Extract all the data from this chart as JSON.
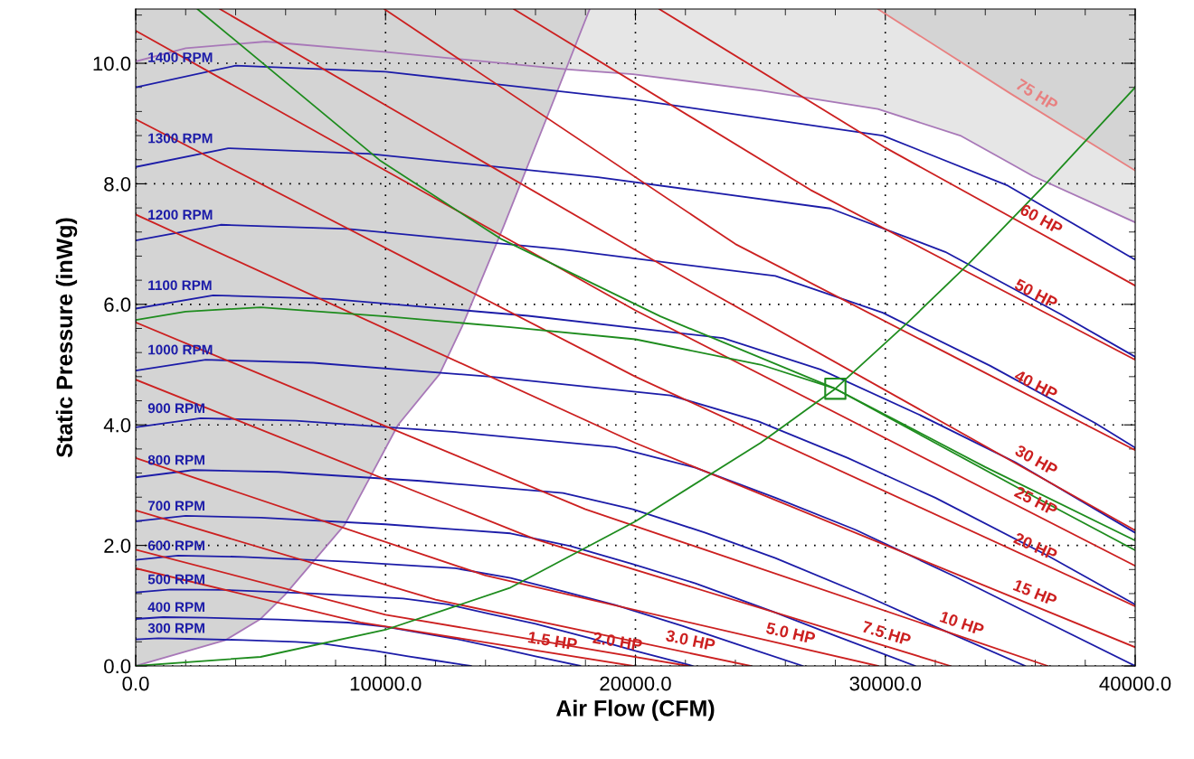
{
  "chart_data": {
    "type": "line",
    "xlabel": "Air Flow (CFM)",
    "ylabel": "Static Pressure (inWg)",
    "xlim": [
      0,
      40000
    ],
    "ylim": [
      0,
      10.9
    ],
    "xticks": [
      {
        "value": 0,
        "label": "0.0"
      },
      {
        "value": 2000,
        "label": null
      },
      {
        "value": 4000,
        "label": null
      },
      {
        "value": 6000,
        "label": null
      },
      {
        "value": 8000,
        "label": null
      },
      {
        "value": 10000,
        "label": "10000.0"
      },
      {
        "value": 12000,
        "label": null
      },
      {
        "value": 14000,
        "label": null
      },
      {
        "value": 16000,
        "label": null
      },
      {
        "value": 18000,
        "label": null
      },
      {
        "value": 20000,
        "label": "20000.0"
      },
      {
        "value": 22000,
        "label": null
      },
      {
        "value": 24000,
        "label": null
      },
      {
        "value": 26000,
        "label": null
      },
      {
        "value": 28000,
        "label": null
      },
      {
        "value": 30000,
        "label": "30000.0"
      },
      {
        "value": 32000,
        "label": null
      },
      {
        "value": 34000,
        "label": null
      },
      {
        "value": 36000,
        "label": null
      },
      {
        "value": 38000,
        "label": null
      },
      {
        "value": 40000,
        "label": "40000.0"
      }
    ],
    "yticks": [
      {
        "value": 0,
        "label": "0.0"
      },
      {
        "value": 0.4,
        "label": null
      },
      {
        "value": 0.8,
        "label": null
      },
      {
        "value": 1.2,
        "label": null
      },
      {
        "value": 1.6,
        "label": null
      },
      {
        "value": 2,
        "label": "2.0"
      },
      {
        "value": 2.4,
        "label": null
      },
      {
        "value": 2.8,
        "label": null
      },
      {
        "value": 3.2,
        "label": null
      },
      {
        "value": 3.6,
        "label": null
      },
      {
        "value": 4,
        "label": "4.0"
      },
      {
        "value": 4.4,
        "label": null
      },
      {
        "value": 4.8,
        "label": null
      },
      {
        "value": 5.2,
        "label": null
      },
      {
        "value": 5.6,
        "label": null
      },
      {
        "value": 6,
        "label": "6.0"
      },
      {
        "value": 6.4,
        "label": null
      },
      {
        "value": 6.8,
        "label": null
      },
      {
        "value": 7.2,
        "label": null
      },
      {
        "value": 7.6,
        "label": null
      },
      {
        "value": 8,
        "label": "8.0"
      },
      {
        "value": 8.4,
        "label": null
      },
      {
        "value": 8.8,
        "label": null
      },
      {
        "value": 9.2,
        "label": null
      },
      {
        "value": 9.6,
        "label": null
      },
      {
        "value": 10,
        "label": "10.0"
      },
      {
        "value": 10.4,
        "label": null
      },
      {
        "value": 10.8,
        "label": null
      }
    ],
    "grid": true,
    "annotations": [
      {
        "text": "75 HP",
        "x": 35800,
        "y": 9.3
      },
      {
        "text": "60 HP",
        "x": 36000,
        "y": 7.23
      },
      {
        "text": "50 HP",
        "x": 35800,
        "y": 5.99
      },
      {
        "text": "40 HP",
        "x": 35800,
        "y": 4.48
      },
      {
        "text": "30 HP",
        "x": 35800,
        "y": 3.23
      },
      {
        "text": "25 HP",
        "x": 35800,
        "y": 2.55
      },
      {
        "text": "20 HP",
        "x": 35800,
        "y": 1.79
      },
      {
        "text": "15 HP",
        "x": 35800,
        "y": 1.02
      },
      {
        "text": "10 HP",
        "x": 32900,
        "y": 0.51
      },
      {
        "text": "7.5 HP",
        "x": 29900,
        "y": 0.34
      },
      {
        "text": "5.0 HP",
        "x": 26100,
        "y": 0.34
      },
      {
        "text": "3.0 HP",
        "x": 22100,
        "y": 0.22
      },
      {
        "text": "2.0 HP",
        "x": 19200,
        "y": 0.2
      },
      {
        "text": "1.5 HP",
        "x": 16600,
        "y": 0.21
      }
    ],
    "series": [
      {
        "color": "#a878b8",
        "x": [
          0,
          2000,
          5200,
          9950,
          17200,
          18170,
          19900,
          25000,
          29700,
          33000,
          35000,
          35900,
          40000
        ],
        "values": [
          10.03,
          10.25,
          10.36,
          10.19,
          9.9,
          9.87,
          9.82,
          9.55,
          9.24,
          8.8,
          8.34,
          8.13,
          7.36
        ],
        "lower": [
          10.03,
          10.25,
          10.36,
          10.19,
          9.9,
          9.87,
          9.82,
          9.55,
          9.24,
          8.8,
          8.34,
          8.13,
          7.36
        ],
        "upper": [
          10.03,
          10.25,
          10.36,
          10.19,
          9.9,
          10.9,
          10.9,
          10.9,
          10.9,
          10.03,
          9.5,
          9.27,
          8.22
        ]
      },
      {
        "color": "#e88080",
        "x": [
          29700,
          35000,
          40000
        ],
        "values": [
          10.9,
          9.5,
          8.22
        ],
        "lower": [
          10.9,
          9.5,
          8.22
        ],
        "upper": [
          10.9,
          10.9,
          10.9
        ]
      },
      {
        "color": "#a878b8",
        "x": [
          0,
          3600,
          5000,
          5970,
          8360,
          10500,
          12160,
          13070,
          14730,
          16790,
          18170
        ],
        "values": [
          0,
          0.43,
          0.78,
          1.18,
          2.34,
          4.0,
          4.84,
          5.64,
          7.3,
          9.45,
          10.9
        ],
        "lower": [
          0,
          0.43,
          0.78,
          1.18,
          2.34,
          4.0,
          4.84,
          5.64,
          7.3,
          9.45,
          10.9
        ],
        "upper": [
          10.9,
          10.9,
          10.9,
          10.9,
          10.9,
          10.9,
          10.9,
          10.9,
          10.9,
          10.9,
          10.9
        ]
      },
      {
        "name": "300 RPM",
        "color": "#1c1ca8",
        "x": [
          0,
          900,
          2100,
          4300,
          6400,
          7500,
          8500,
          9600,
          10900,
          12000,
          13400
        ],
        "values": [
          0.44,
          0.46,
          0.45,
          0.43,
          0.4,
          0.37,
          0.31,
          0.25,
          0.16,
          0.09,
          0
        ]
      },
      {
        "name": "400 RPM",
        "color": "#1c1ca8",
        "x": [
          0,
          1100,
          2800,
          5700,
          8500,
          10000,
          11400,
          12800,
          14600,
          16000,
          17800
        ],
        "values": [
          0.78,
          0.81,
          0.8,
          0.77,
          0.72,
          0.65,
          0.55,
          0.45,
          0.29,
          0.16,
          0
        ]
      },
      {
        "name": "500 RPM",
        "color": "#1c1ca8",
        "x": [
          0,
          1400,
          3600,
          7100,
          10700,
          12500,
          14200,
          16000,
          18200,
          20000,
          22300
        ],
        "values": [
          1.22,
          1.27,
          1.26,
          1.2,
          1.12,
          1.02,
          0.86,
          0.7,
          0.46,
          0.25,
          0
        ]
      },
      {
        "name": "600 RPM",
        "color": "#1c1ca8",
        "x": [
          0,
          1700,
          4300,
          8500,
          12800,
          15000,
          17100,
          19200,
          21900,
          24000,
          26700
        ],
        "values": [
          1.76,
          1.83,
          1.81,
          1.73,
          1.62,
          1.46,
          1.24,
          1.01,
          0.66,
          0.37,
          0
        ]
      },
      {
        "name": "700 RPM",
        "color": "#1c1ca8",
        "x": [
          0,
          2000,
          5000,
          10000,
          15000,
          17400,
          19900,
          22400,
          25500,
          28000,
          31200
        ],
        "values": [
          2.4,
          2.49,
          2.46,
          2.35,
          2.2,
          1.99,
          1.69,
          1.37,
          0.9,
          0.5,
          0
        ]
      },
      {
        "name": "800 RPM",
        "color": "#1c1ca8",
        "x": [
          0,
          2300,
          5700,
          11400,
          17100,
          19900,
          22800,
          25600,
          29200,
          32000,
          35600
        ],
        "values": [
          3.13,
          3.25,
          3.22,
          3.07,
          2.87,
          2.6,
          2.21,
          1.79,
          1.17,
          0.65,
          0
        ]
      },
      {
        "name": "900 RPM",
        "color": "#1c1ca8",
        "x": [
          0,
          2600,
          6400,
          12800,
          19200,
          22400,
          25600,
          28800,
          32800,
          36000,
          40000
        ],
        "values": [
          3.96,
          4.11,
          4.07,
          3.88,
          3.63,
          3.29,
          2.79,
          2.26,
          1.48,
          0.82,
          0
        ]
      },
      {
        "name": "1000 RPM",
        "color": "#1c1ca8",
        "x": [
          0,
          2800,
          7100,
          14200,
          21400,
          24900,
          28500,
          32000,
          36500,
          40000
        ],
        "values": [
          4.9,
          5.08,
          5.03,
          4.8,
          4.49,
          4.06,
          3.45,
          2.79,
          1.83,
          1.02
        ]
      },
      {
        "name": "1100 RPM",
        "color": "#1c1ca8",
        "x": [
          0,
          3100,
          7800,
          15700,
          23500,
          27400,
          31300,
          35200,
          40000
        ],
        "values": [
          5.93,
          6.15,
          6.09,
          5.81,
          5.44,
          4.92,
          4.18,
          3.38,
          2.21
        ]
      },
      {
        "name": "1200 RPM",
        "color": "#1c1ca8",
        "x": [
          0,
          3400,
          8500,
          17100,
          25600,
          29900,
          34200,
          38400,
          40000
        ],
        "values": [
          7.06,
          7.32,
          7.25,
          6.91,
          6.47,
          5.86,
          4.98,
          4.03,
          3.62
        ]
      },
      {
        "name": "1300 RPM",
        "color": "#1c1ca8",
        "x": [
          0,
          3700,
          9300,
          18500,
          27800,
          32400,
          37000,
          40000
        ],
        "values": [
          8.28,
          8.59,
          8.5,
          8.11,
          7.59,
          6.87,
          5.84,
          5.13
        ]
      },
      {
        "name": "1400 RPM",
        "color": "#1c1ca8",
        "x": [
          0,
          4000,
          10000,
          19900,
          29900,
          34900,
          40000
        ],
        "values": [
          9.6,
          9.96,
          9.86,
          9.4,
          8.8,
          7.97,
          6.74
        ]
      },
      {
        "color": "#cc2020",
        "x": [
          20950,
          30000,
          40000
        ],
        "values": [
          10.9,
          8.6,
          6.31
        ]
      },
      {
        "color": "#cc2020",
        "x": [
          15130,
          27000,
          40000
        ],
        "values": [
          10.9,
          7.9,
          5.08
        ]
      },
      {
        "color": "#cc2020",
        "x": [
          9950,
          24000,
          40000
        ],
        "values": [
          10.9,
          7.0,
          3.58
        ]
      },
      {
        "color": "#cc2020",
        "x": [
          3370,
          20000,
          40000
        ],
        "values": [
          10.9,
          6.9,
          2.25
        ]
      },
      {
        "color": "#cc2020",
        "x": [
          0,
          20000,
          40000
        ],
        "values": [
          10.54,
          5.9,
          1.66
        ]
      },
      {
        "color": "#cc2020",
        "x": [
          0,
          20000,
          40000
        ],
        "values": [
          9.07,
          4.8,
          0.99
        ]
      },
      {
        "color": "#cc2020",
        "x": [
          0,
          20000,
          40000
        ],
        "values": [
          7.49,
          3.7,
          0.31
        ]
      },
      {
        "color": "#cc2020",
        "x": [
          0,
          18000,
          36500
        ],
        "values": [
          5.7,
          2.6,
          0
        ]
      },
      {
        "color": "#cc2020",
        "x": [
          0,
          16000,
          32600
        ],
        "values": [
          4.75,
          2.1,
          0
        ]
      },
      {
        "color": "#cc2020",
        "x": [
          0,
          14000,
          29700
        ],
        "values": [
          3.45,
          1.5,
          0
        ]
      },
      {
        "color": "#cc2020",
        "x": [
          0,
          12000,
          24600
        ],
        "values": [
          2.58,
          1.1,
          0
        ]
      },
      {
        "color": "#cc2020",
        "x": [
          0,
          10000,
          22100
        ],
        "values": [
          1.93,
          0.85,
          0
        ]
      },
      {
        "color": "#cc2020",
        "x": [
          0,
          9000,
          19900
        ],
        "values": [
          1.62,
          0.72,
          0
        ]
      },
      {
        "color": "#1e8c1e",
        "x": [
          0,
          2000,
          5000,
          10000,
          15000,
          20000,
          25000,
          28000,
          32000,
          36000,
          40000
        ],
        "values": [
          5.74,
          5.88,
          5.95,
          5.8,
          5.62,
          5.42,
          5.0,
          4.6,
          3.7,
          2.8,
          1.92
        ]
      },
      {
        "color": "#1e8c1e",
        "x": [
          2470,
          9800,
          14600,
          21000,
          28000,
          34000,
          40000
        ],
        "values": [
          10.9,
          8.38,
          7.09,
          5.8,
          4.6,
          3.3,
          2.08
        ]
      },
      {
        "color": "#1e8c1e",
        "x": [
          0,
          5000,
          10000,
          15000,
          20000,
          25000,
          28000,
          30900,
          33300,
          36400,
          40000
        ],
        "values": [
          0,
          0.15,
          0.6,
          1.3,
          2.4,
          3.7,
          4.6,
          5.7,
          6.66,
          7.99,
          9.6
        ]
      },
      {
        "type": "scatter",
        "marker": "square",
        "color": "#1e8c1e",
        "x": [
          28000
        ],
        "values": [
          4.6
        ]
      }
    ]
  }
}
